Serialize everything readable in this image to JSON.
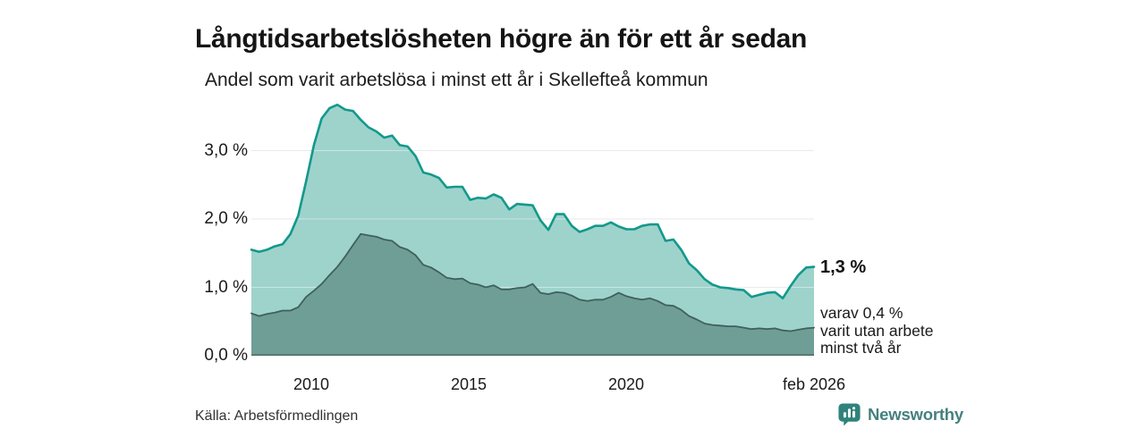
{
  "title": "Långtidsarbetslösheten högre än för ett år sedan",
  "subtitle": "Andel som varit arbetslösa i minst ett år i Skellefteå kommun",
  "source": "Källa: Arbetsförmedlingen",
  "branding": {
    "name": "Newsworthy",
    "icon_color": "#2F837B",
    "wordmark_color": "#44807E"
  },
  "annotations": {
    "end_value_label": "1,3 %",
    "sub_series_label": [
      "varav 0,4 %",
      "varit utan arbete",
      "minst två år"
    ]
  },
  "axes": {
    "y_ticks": [
      "3,0 %",
      "2,0 %",
      "1,0 %",
      "0,0 %"
    ],
    "y_tick_levels": [
      3,
      2,
      1,
      0
    ],
    "x_ticks": [
      "2010",
      "2015",
      "2020",
      "feb 2026"
    ]
  },
  "colors": {
    "area_light": "#9ED3CC",
    "line_teal": "#12998B",
    "area_dark": "#6F9E97",
    "line_dark": "#40605B",
    "baseline": "#4A6A64",
    "gridline": "#D9D9D9"
  },
  "chart_data": {
    "type": "area",
    "title": "Långtidsarbetslösheten högre än för ett år sedan",
    "subtitle": "Andel som varit arbetslösa i minst ett år i Skellefteå kommun",
    "x_start": "2008-02",
    "x_end": "2026-02",
    "x_step_months": 3,
    "x_tick_labels": [
      "2010",
      "2015",
      "2020",
      "feb 2026"
    ],
    "y_unit": "%",
    "ylim": [
      0,
      3.8
    ],
    "grid": "horizontal",
    "legend_position": "none",
    "series": [
      {
        "name": "Andel arbetslösa minst ett år",
        "end_value": 1.3,
        "fill": "#9ED3CC",
        "line": "#12998B",
        "values": [
          1.55,
          1.52,
          1.55,
          1.6,
          1.63,
          1.78,
          2.05,
          2.55,
          3.08,
          3.47,
          3.62,
          3.67,
          3.6,
          3.58,
          3.45,
          3.34,
          3.28,
          3.19,
          3.22,
          3.08,
          3.06,
          2.92,
          2.68,
          2.65,
          2.6,
          2.46,
          2.47,
          2.47,
          2.28,
          2.31,
          2.3,
          2.36,
          2.31,
          2.14,
          2.22,
          2.21,
          2.2,
          1.98,
          1.84,
          2.07,
          2.07,
          1.9,
          1.81,
          1.85,
          1.9,
          1.9,
          1.95,
          1.89,
          1.85,
          1.85,
          1.9,
          1.92,
          1.92,
          1.68,
          1.7,
          1.55,
          1.35,
          1.25,
          1.12,
          1.04,
          1.0,
          0.99,
          0.97,
          0.96,
          0.86,
          0.89,
          0.92,
          0.93,
          0.84,
          1.02,
          1.18,
          1.29,
          1.3
        ]
      },
      {
        "name": "varav utan arbete minst två år",
        "end_value": 0.4,
        "fill": "#6F9E97",
        "line": "#40605B",
        "values": [
          0.62,
          0.58,
          0.61,
          0.63,
          0.66,
          0.66,
          0.71,
          0.86,
          0.95,
          1.05,
          1.18,
          1.3,
          1.45,
          1.62,
          1.78,
          1.76,
          1.74,
          1.7,
          1.68,
          1.59,
          1.55,
          1.47,
          1.33,
          1.29,
          1.22,
          1.14,
          1.12,
          1.13,
          1.06,
          1.04,
          1.0,
          1.03,
          0.97,
          0.97,
          0.99,
          1.0,
          1.05,
          0.92,
          0.9,
          0.93,
          0.92,
          0.88,
          0.82,
          0.8,
          0.82,
          0.82,
          0.86,
          0.92,
          0.87,
          0.84,
          0.82,
          0.84,
          0.8,
          0.74,
          0.73,
          0.67,
          0.58,
          0.53,
          0.47,
          0.45,
          0.44,
          0.43,
          0.43,
          0.41,
          0.39,
          0.4,
          0.39,
          0.4,
          0.37,
          0.36,
          0.38,
          0.4,
          0.41
        ]
      }
    ]
  }
}
